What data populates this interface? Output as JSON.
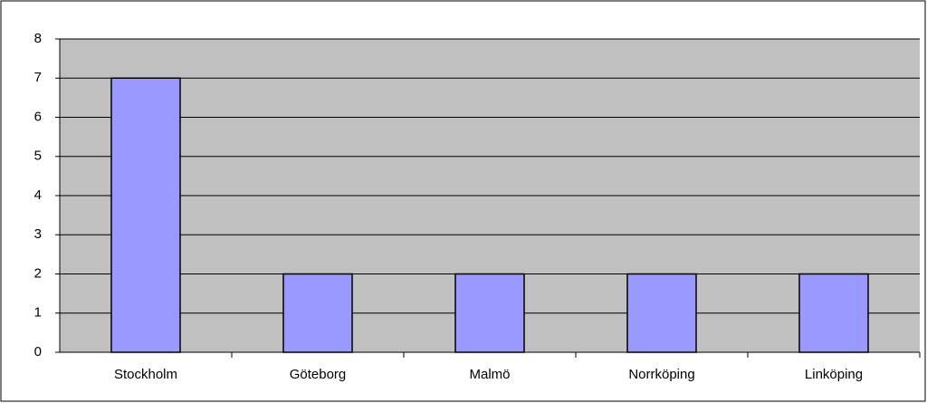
{
  "chart_data": {
    "type": "bar",
    "categories": [
      "Stockholm",
      "Göteborg",
      "Malmö",
      "Norrköping",
      "Linköping"
    ],
    "values": [
      7,
      2,
      2,
      2,
      2
    ],
    "color": "#9999ff",
    "ylim": [
      0,
      8
    ],
    "yticks": [
      0,
      1,
      2,
      3,
      4,
      5,
      6,
      7,
      8
    ],
    "grid": true
  }
}
